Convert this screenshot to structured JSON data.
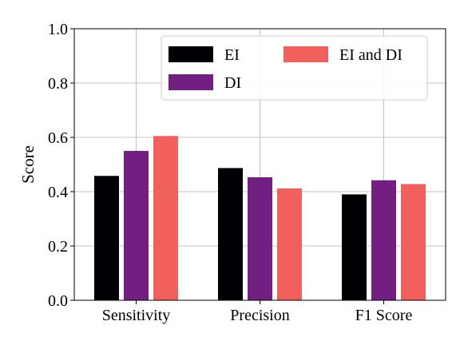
{
  "chart_data": {
    "type": "bar",
    "title": "",
    "xlabel": "",
    "ylabel": "Score",
    "ylim": [
      0,
      1
    ],
    "yticks": [
      "0.0",
      "0.2",
      "0.4",
      "0.6",
      "0.8",
      "1.0"
    ],
    "categories": [
      "Sensitivity",
      "Precision",
      "F1 Score"
    ],
    "series": [
      {
        "name": "EI",
        "values": [
          0.458,
          0.487,
          0.39
        ],
        "color": "#000004"
      },
      {
        "name": "DI",
        "values": [
          0.55,
          0.453,
          0.442
        ],
        "color": "#721f81"
      },
      {
        "name": "EI and DI",
        "values": [
          0.605,
          0.412,
          0.428
        ],
        "color": "#f1605d"
      }
    ],
    "grid": true,
    "legend_position": "top-right"
  }
}
